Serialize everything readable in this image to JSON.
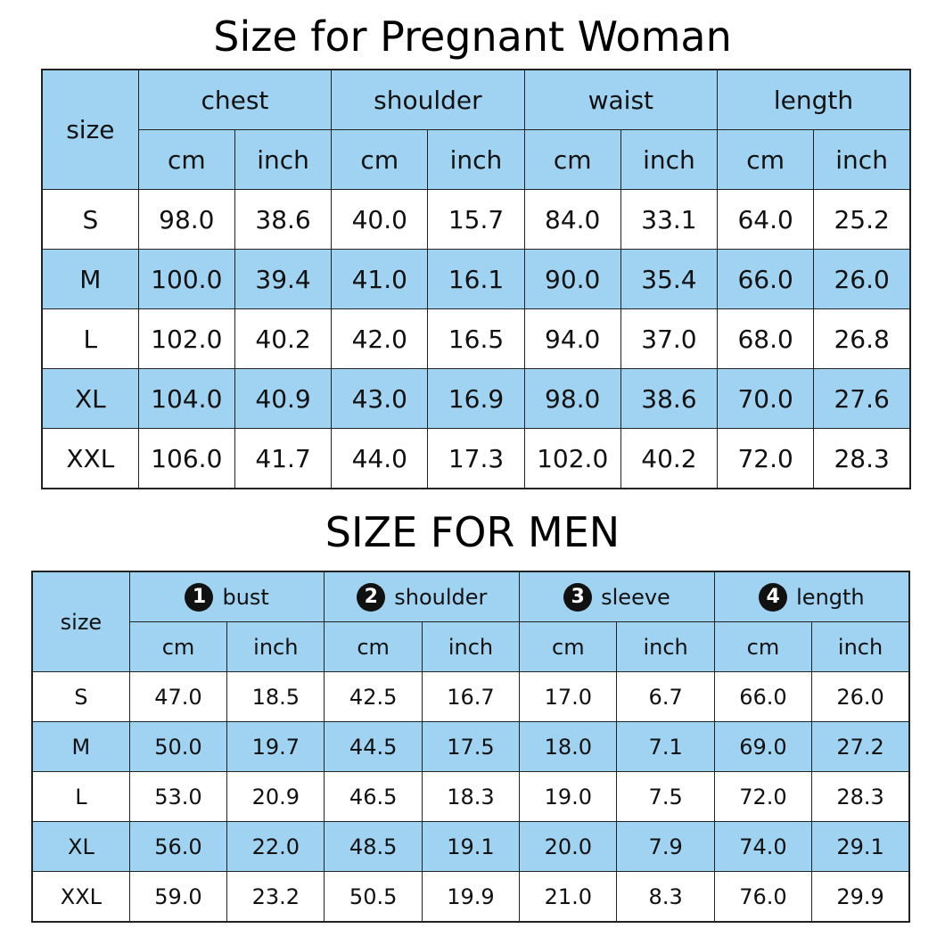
{
  "women": {
    "title": "Size for Pregnant Woman",
    "size_header": "size",
    "groups": [
      "chest",
      "shoulder",
      "waist",
      "length"
    ],
    "units": [
      "cm",
      "inch"
    ],
    "rows": [
      {
        "size": "S",
        "values": [
          "98.0",
          "38.6",
          "40.0",
          "15.7",
          "84.0",
          "33.1",
          "64.0",
          "25.2"
        ]
      },
      {
        "size": "M",
        "values": [
          "100.0",
          "39.4",
          "41.0",
          "16.1",
          "90.0",
          "35.4",
          "66.0",
          "26.0"
        ]
      },
      {
        "size": "L",
        "values": [
          "102.0",
          "40.2",
          "42.0",
          "16.5",
          "94.0",
          "37.0",
          "68.0",
          "26.8"
        ]
      },
      {
        "size": "XL",
        "values": [
          "104.0",
          "40.9",
          "43.0",
          "16.9",
          "98.0",
          "38.6",
          "70.0",
          "27.6"
        ]
      },
      {
        "size": "XXL",
        "values": [
          "106.0",
          "41.7",
          "44.0",
          "17.3",
          "102.0",
          "40.2",
          "72.0",
          "28.3"
        ]
      }
    ]
  },
  "men": {
    "title": "SIZE FOR MEN",
    "size_header": "size",
    "groups": [
      {
        "num": "1",
        "label": "bust"
      },
      {
        "num": "2",
        "label": "shoulder"
      },
      {
        "num": "3",
        "label": "sleeve"
      },
      {
        "num": "4",
        "label": "length"
      }
    ],
    "units": [
      "cm",
      "inch"
    ],
    "rows": [
      {
        "size": "S",
        "values": [
          "47.0",
          "18.5",
          "42.5",
          "16.7",
          "17.0",
          "6.7",
          "66.0",
          "26.0"
        ]
      },
      {
        "size": "M",
        "values": [
          "50.0",
          "19.7",
          "44.5",
          "17.5",
          "18.0",
          "7.1",
          "69.0",
          "27.2"
        ]
      },
      {
        "size": "L",
        "values": [
          "53.0",
          "20.9",
          "46.5",
          "18.3",
          "19.0",
          "7.5",
          "72.0",
          "28.3"
        ]
      },
      {
        "size": "XL",
        "values": [
          "56.0",
          "22.0",
          "48.5",
          "19.1",
          "20.0",
          "7.9",
          "74.0",
          "29.1"
        ]
      },
      {
        "size": "XXL",
        "values": [
          "59.0",
          "23.2",
          "50.5",
          "19.9",
          "21.0",
          "8.3",
          "76.0",
          "29.9"
        ]
      }
    ]
  },
  "colors": {
    "header_bg": "#9fd3f1",
    "row_alt_bg": "#9fd3f1",
    "border": "#222222"
  }
}
